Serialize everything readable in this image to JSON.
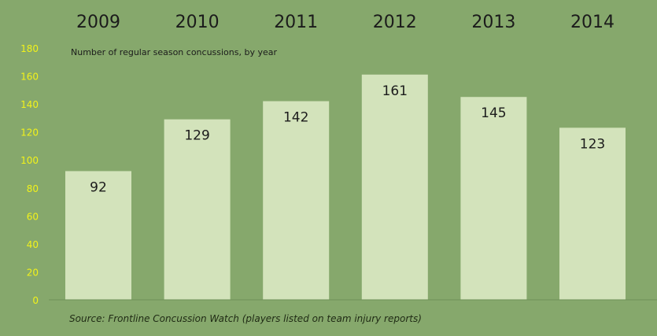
{
  "chart_data": {
    "type": "bar",
    "categories": [
      "2009",
      "2010",
      "2011",
      "2012",
      "2013",
      "2014"
    ],
    "values": [
      92,
      129,
      142,
      161,
      145,
      123
    ],
    "data_labels": [
      "92",
      "129",
      "142",
      "161",
      "145",
      "123"
    ],
    "title": "Number of regular season concussions, by year",
    "xlabel": "",
    "ylabel": "",
    "ylim": [
      0,
      180
    ],
    "yticks": [
      0,
      20,
      40,
      60,
      80,
      100,
      120,
      140,
      160,
      180
    ],
    "category_labels_position": "top",
    "grid": false,
    "legend": "none",
    "colors": {
      "background": "#86a86c",
      "bar": "#d3e3bb",
      "tick_label": "#f2f21a",
      "category_label": "#1b1b1b",
      "data_label": "#1b1b1b",
      "axis": "#6f8f58"
    }
  },
  "source": "Source: Frontline Concussion Watch (players listed on team injury reports)"
}
